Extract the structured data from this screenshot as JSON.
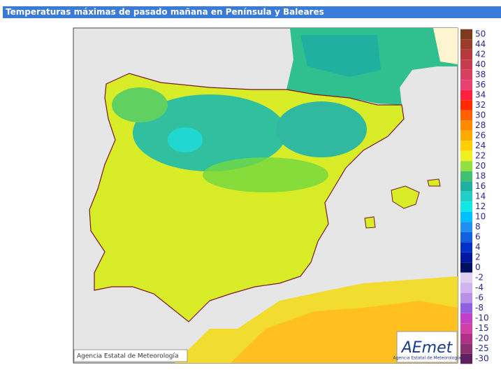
{
  "header": {
    "title": "Temperaturas máximas de pasado mañana en Península y Baleares"
  },
  "map": {
    "copyright": "Agencia Estatal de Meteorología",
    "logo": "AEmet",
    "logo_subtitle": "Agencia Estatal de Meteorología"
  },
  "legend": {
    "positive": [
      {
        "label": 50,
        "color": "#7e3a1c"
      },
      {
        "label": 44,
        "color": "#9a3c2a"
      },
      {
        "label": 42,
        "color": "#b43a3e"
      },
      {
        "label": 40,
        "color": "#c83a4e"
      },
      {
        "label": 38,
        "color": "#d83e60"
      },
      {
        "label": 36,
        "color": "#e84070"
      },
      {
        "label": 34,
        "color": "#ff2040"
      },
      {
        "label": 32,
        "color": "#ff2a00"
      },
      {
        "label": 30,
        "color": "#ff6000"
      },
      {
        "label": 28,
        "color": "#ff8a00"
      },
      {
        "label": 26,
        "color": "#ffaa00"
      },
      {
        "label": 24,
        "color": "#ffd000"
      },
      {
        "label": 22,
        "color": "#f0f020"
      },
      {
        "label": 20,
        "color": "#90e040"
      },
      {
        "label": 18,
        "color": "#40c070"
      },
      {
        "label": 16,
        "color": "#20b0a0"
      },
      {
        "label": 14,
        "color": "#20d0c8"
      },
      {
        "label": 12,
        "color": "#10e8e8"
      },
      {
        "label": 10,
        "color": "#00c0ff"
      },
      {
        "label": 8,
        "color": "#2090f0"
      },
      {
        "label": 6,
        "color": "#1060e0"
      },
      {
        "label": 4,
        "color": "#0030c8"
      },
      {
        "label": 2,
        "color": "#0018a0"
      },
      {
        "label": 0,
        "color": "#001060"
      }
    ],
    "negative": [
      {
        "label": -2,
        "color": "#e0d0f0"
      },
      {
        "label": -4,
        "color": "#d0b4f0"
      },
      {
        "label": -6,
        "color": "#b890e8"
      },
      {
        "label": -8,
        "color": "#9060e0"
      },
      {
        "label": -10,
        "color": "#c040c8"
      },
      {
        "label": -15,
        "color": "#d040a8"
      },
      {
        "label": -20,
        "color": "#b03088"
      },
      {
        "label": -25,
        "color": "#883070"
      },
      {
        "label": -30,
        "color": "#602060"
      }
    ]
  }
}
